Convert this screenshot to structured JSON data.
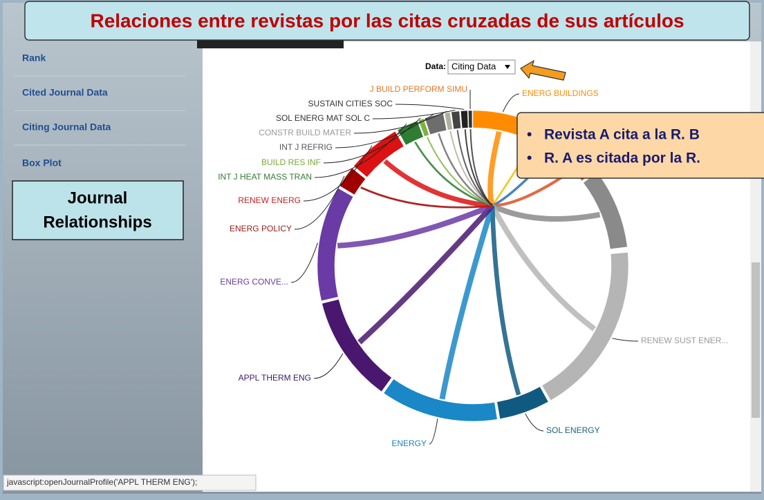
{
  "banner": {
    "title": "Relaciones entre revistas por las citas cruzadas de sus artículos"
  },
  "sidebar": {
    "items": [
      "Rank",
      "Cited Journal Data",
      "Citing Journal Data",
      "Box Plot"
    ]
  },
  "section_box": {
    "lines": [
      "Journal",
      "Relationships"
    ]
  },
  "selector": {
    "label": "Data:",
    "value": "Citing Data"
  },
  "callout": {
    "bullets": [
      "Revista A cita a la R. B",
      "R. A es citada por la R."
    ]
  },
  "journals": [
    "J BUILD PERFORM SIMU",
    "ENERG BUILDINGS",
    "SUSTAIN CITIES SOC",
    "SOL ENERG MAT SOL C",
    "CONSTR BUILD MATER",
    "INT J REFRIG",
    "BUILD RES INF",
    "INT J HEAT MASS TRAN",
    "RENEW ENERG",
    "ENERG POLICY",
    "ENERG CONVE...",
    "APPL THERM ENG",
    "ENERGY",
    "SOL ENERGY",
    "RENEW SUST ENER..."
  ],
  "status_bar": "javascript:openJournalProfile('APPL THERM ENG');"
}
